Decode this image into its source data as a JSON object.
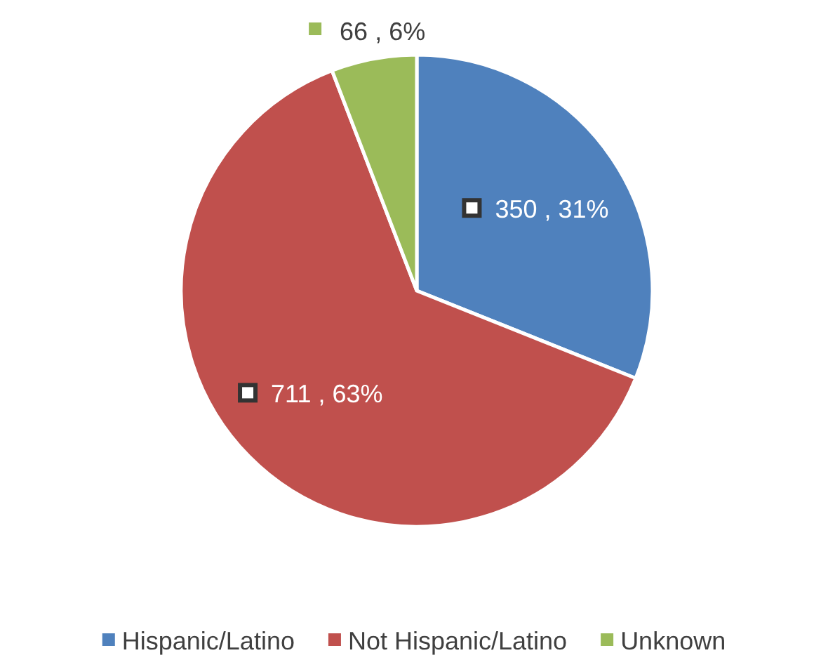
{
  "chart_data": {
    "type": "pie",
    "categories": [
      "Hispanic/Latino",
      "Not Hispanic/Latino",
      "Unknown"
    ],
    "values": [
      350,
      711,
      66
    ],
    "colors": [
      "#4f81bd",
      "#c0504d",
      "#9bbb59"
    ],
    "value_labels": [
      "350 , 31%",
      "711 , 63%",
      "66 , 6%"
    ],
    "legend": "bottom"
  }
}
